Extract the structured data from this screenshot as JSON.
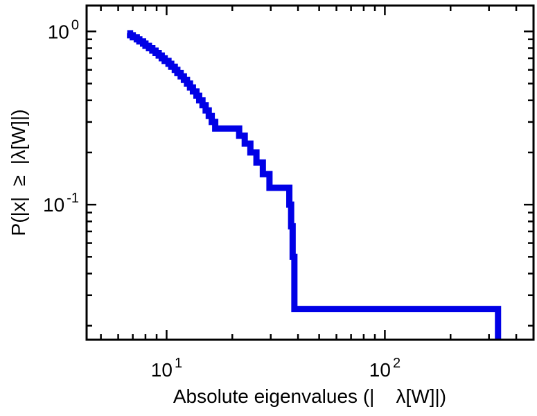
{
  "chart_data": {
    "type": "line",
    "subtype": "step-ccdf-loglog",
    "title": "",
    "xlabel": "Absolute eigenvalues (|    λ[W]|)",
    "ylabel": "P(|x|  ≥  |λ[W]|)",
    "x_scale": "log",
    "y_scale": "log",
    "xlim": [
      4.3,
      480
    ],
    "ylim": [
      0.0166,
      1.41
    ],
    "grid": false,
    "legend": "none",
    "line_color": "#0000e6",
    "line_width": 9,
    "frame_color": "#000000",
    "background": "#ffffff",
    "x_ticks": {
      "major": [
        {
          "value": 10,
          "base": "10",
          "exponent": "1"
        },
        {
          "value": 100,
          "base": "10",
          "exponent": "2"
        }
      ],
      "minor": [
        5,
        6,
        7,
        8,
        9,
        20,
        30,
        40,
        50,
        60,
        70,
        80,
        90,
        200,
        300,
        400
      ]
    },
    "y_ticks": {
      "major": [
        {
          "value": 1,
          "base": "10",
          "exponent": "0"
        },
        {
          "value": 0.1,
          "base": "10",
          "exponent": "-1"
        }
      ],
      "minor": [
        0.02,
        0.03,
        0.04,
        0.05,
        0.06,
        0.07,
        0.08,
        0.09,
        0.2,
        0.3,
        0.4,
        0.5,
        0.6,
        0.7,
        0.8,
        0.9
      ]
    },
    "points": [
      [
        6.6,
        0.975
      ],
      [
        6.8,
        0.95
      ],
      [
        7.0,
        0.925
      ],
      [
        7.3,
        0.9
      ],
      [
        7.5,
        0.875
      ],
      [
        7.8,
        0.85
      ],
      [
        8.0,
        0.825
      ],
      [
        8.3,
        0.8
      ],
      [
        8.6,
        0.775
      ],
      [
        8.9,
        0.75
      ],
      [
        9.2,
        0.725
      ],
      [
        9.5,
        0.7
      ],
      [
        9.8,
        0.675
      ],
      [
        10.2,
        0.65
      ],
      [
        10.5,
        0.625
      ],
      [
        10.9,
        0.6
      ],
      [
        11.2,
        0.575
      ],
      [
        11.6,
        0.55
      ],
      [
        12.0,
        0.525
      ],
      [
        12.4,
        0.5
      ],
      [
        12.8,
        0.475
      ],
      [
        13.2,
        0.45
      ],
      [
        13.7,
        0.425
      ],
      [
        14.1,
        0.4
      ],
      [
        14.6,
        0.375
      ],
      [
        15.1,
        0.35
      ],
      [
        15.6,
        0.325
      ],
      [
        16.1,
        0.3
      ],
      [
        16.7,
        0.275
      ],
      [
        21.5,
        0.25
      ],
      [
        22.8,
        0.225
      ],
      [
        24.2,
        0.2
      ],
      [
        25.8,
        0.175
      ],
      [
        27.6,
        0.15
      ],
      [
        29.6,
        0.125
      ],
      [
        36.5,
        0.1
      ],
      [
        37.2,
        0.075
      ],
      [
        37.8,
        0.05
      ],
      [
        38.5,
        0.025
      ],
      [
        330,
        0.0
      ]
    ]
  }
}
